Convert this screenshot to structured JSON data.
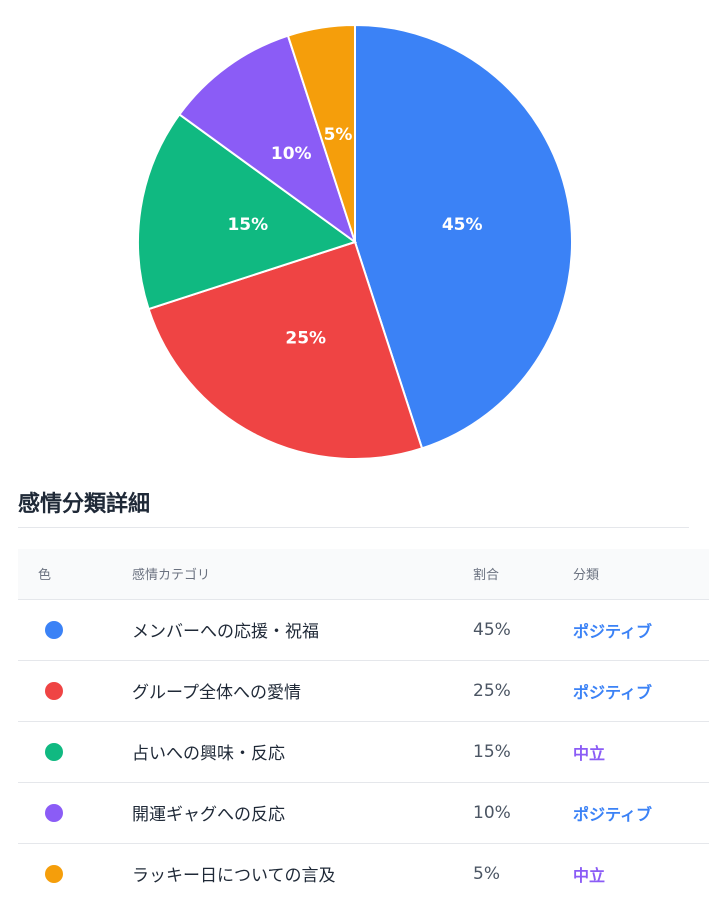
{
  "chart_data": {
    "type": "pie",
    "title": "",
    "slices": [
      {
        "label": "メンバーへの応援・祝福",
        "value": 45,
        "display": "45%",
        "color": "#3b82f6"
      },
      {
        "label": "グループ全体への愛情",
        "value": 25,
        "display": "25%",
        "color": "#ef4444"
      },
      {
        "label": "占いへの興味・反応",
        "value": 15,
        "display": "15%",
        "color": "#10b981"
      },
      {
        "label": "開運ギャグへの反応",
        "value": 10,
        "display": "10%",
        "color": "#8b5cf6"
      },
      {
        "label": "ラッキー日についての言及",
        "value": 5,
        "display": "5%",
        "color": "#f59e0b"
      }
    ],
    "start_angle": "12 o'clock",
    "direction": "clockwise"
  },
  "section": {
    "title": "感情分類詳細"
  },
  "table": {
    "headers": {
      "color": "色",
      "category": "感情カテゴリ",
      "ratio": "割合",
      "classification": "分類"
    },
    "rows": [
      {
        "color": "#3b82f6",
        "category": "メンバーへの応援・祝福",
        "ratio": "45%",
        "classification": "ポジティブ",
        "classification_color": "#3b82f6"
      },
      {
        "color": "#ef4444",
        "category": "グループ全体への愛情",
        "ratio": "25%",
        "classification": "ポジティブ",
        "classification_color": "#3b82f6"
      },
      {
        "color": "#10b981",
        "category": "占いへの興味・反応",
        "ratio": "15%",
        "classification": "中立",
        "classification_color": "#8b5cf6"
      },
      {
        "color": "#8b5cf6",
        "category": "開運ギャグへの反応",
        "ratio": "10%",
        "classification": "ポジティブ",
        "classification_color": "#3b82f6"
      },
      {
        "color": "#f59e0b",
        "category": "ラッキー日についての言及",
        "ratio": "5%",
        "classification": "中立",
        "classification_color": "#8b5cf6"
      }
    ]
  }
}
